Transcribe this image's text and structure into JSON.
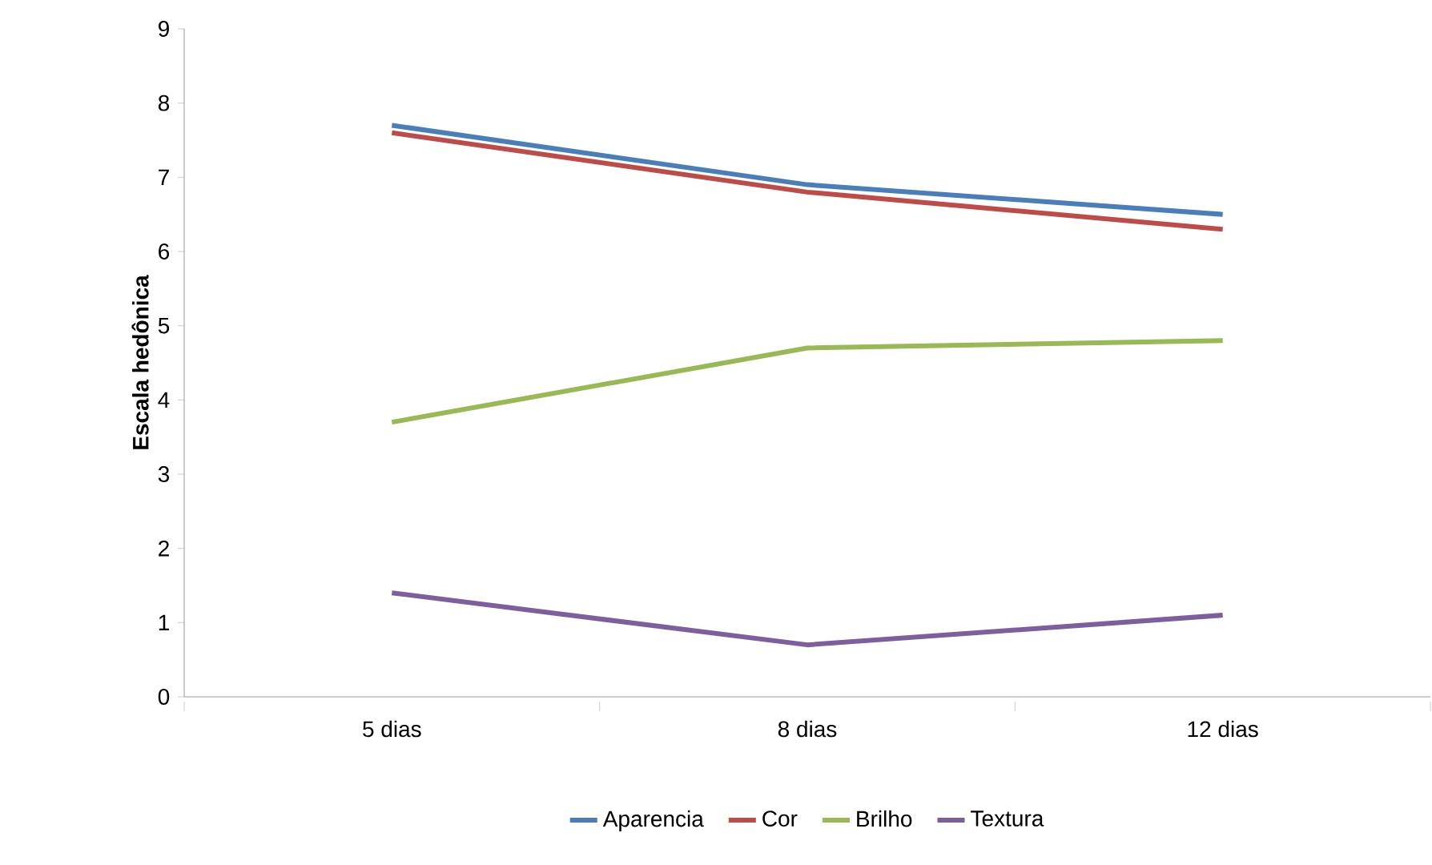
{
  "chart_data": {
    "type": "line",
    "ylabel": "Escala hedônica",
    "categories": [
      "5 dias",
      "8 dias",
      "12 dias"
    ],
    "series": [
      {
        "name": "Aparencia",
        "color": "#4a7ebb",
        "values": [
          7.7,
          6.9,
          6.5
        ]
      },
      {
        "name": "Cor",
        "color": "#be4b48",
        "values": [
          7.6,
          6.8,
          6.3
        ]
      },
      {
        "name": "Brilho",
        "color": "#98b954",
        "values": [
          3.7,
          4.7,
          4.8
        ]
      },
      {
        "name": "Textura",
        "color": "#7d5fa0",
        "values": [
          1.4,
          0.7,
          1.1
        ]
      }
    ],
    "ylim": [
      0,
      9
    ],
    "yticks": [
      0,
      1,
      2,
      3,
      4,
      5,
      6,
      7,
      8,
      9
    ],
    "legend": "bottom",
    "grid": false,
    "marker": "none",
    "line_style": "solid"
  }
}
